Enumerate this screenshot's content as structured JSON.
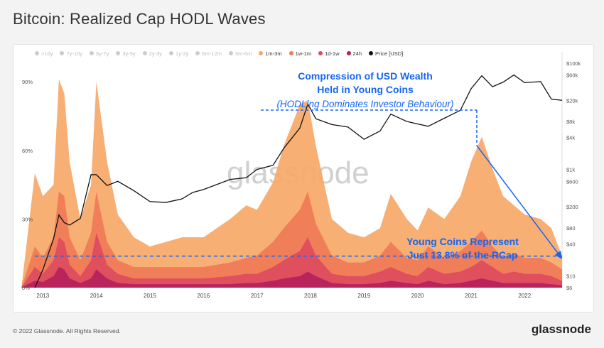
{
  "page": {
    "title": "Bitcoin: Realized Cap HODL Waves",
    "copyright": "© 2022 Glassnode. All Rights Reserved.",
    "brand": "glassnode",
    "watermark": "glassnode"
  },
  "legend": [
    {
      "label": ">10y",
      "color": "#5b4bb7",
      "active": false
    },
    {
      "label": "7y-10y",
      "color": "#3d7fd1",
      "active": false
    },
    {
      "label": "5y-7y",
      "color": "#3fa7c7",
      "active": false
    },
    {
      "label": "3y-5y",
      "color": "#5cc38c",
      "active": false
    },
    {
      "label": "2y-3y",
      "color": "#a8d86a",
      "active": false
    },
    {
      "label": "1y-2y",
      "color": "#e4e36b",
      "active": false
    },
    {
      "label": "6m-12m",
      "color": "#f7dd7a",
      "active": false
    },
    {
      "label": "3m-6m",
      "color": "#fbc17e",
      "active": false
    },
    {
      "label": "1m-3m",
      "color": "#f6a868",
      "active": true
    },
    {
      "label": "1w-1m",
      "color": "#ef7b57",
      "active": true
    },
    {
      "label": "1d-1w",
      "color": "#dd4b5e",
      "active": true
    },
    {
      "label": "24h",
      "color": "#b5215c",
      "active": true
    },
    {
      "label": "Price [USD]",
      "color": "#111111",
      "active": true
    }
  ],
  "annotations": {
    "top_line1": "Compression of USD Wealth",
    "top_line2": "Held in Young Coins",
    "top_line3": "(HODLing Dominates Investor Behaviour)",
    "bottom_line1": "Young Coins Represent",
    "bottom_line2": "Just 13.8% of the RCap",
    "color": "#1565f5"
  },
  "chart_data": {
    "type": "area",
    "x": [
      2012.6,
      2013.0,
      2013.2,
      2013.3,
      2013.4,
      2013.5,
      2013.7,
      2013.9,
      2014.0,
      2014.2,
      2014.4,
      2014.7,
      2015.0,
      2015.3,
      2015.6,
      2015.8,
      2016.0,
      2016.5,
      2016.8,
      2017.0,
      2017.3,
      2017.5,
      2017.8,
      2017.95,
      2018.1,
      2018.4,
      2018.7,
      2019.0,
      2019.3,
      2019.5,
      2019.8,
      2020.0,
      2020.2,
      2020.5,
      2020.8,
      2021.0,
      2021.2,
      2021.4,
      2021.6,
      2021.8,
      2022.0,
      2022.3,
      2022.5,
      2022.7
    ],
    "series": [
      {
        "name": "24h",
        "color": "#b5215c",
        "values": [
          3,
          2.5,
          5,
          9,
          8,
          4,
          2,
          4,
          8,
          4,
          2,
          1.5,
          1.5,
          1.5,
          1.5,
          1.5,
          1.5,
          1.5,
          2,
          2,
          3,
          4,
          5,
          7,
          5,
          2,
          1.5,
          1.5,
          2,
          3,
          2,
          1.5,
          3,
          1.5,
          2,
          3,
          4,
          3,
          2,
          2,
          2,
          2,
          1.5,
          1
        ]
      },
      {
        "name": "1d-1w",
        "color": "#dd4b5e",
        "values": [
          9,
          6,
          12,
          22,
          20,
          10,
          5,
          12,
          24,
          10,
          6,
          4,
          4,
          4,
          4,
          4,
          4,
          5,
          6,
          6,
          9,
          12,
          16,
          22,
          14,
          6,
          5,
          5,
          7,
          9,
          6,
          5,
          9,
          6,
          7,
          9,
          12,
          9,
          6,
          7,
          6,
          6,
          5,
          3
        ]
      },
      {
        "name": "1w-1m",
        "color": "#ef7b57",
        "values": [
          18,
          13,
          22,
          42,
          40,
          22,
          12,
          24,
          42,
          20,
          12,
          9,
          9,
          9,
          9,
          9,
          9,
          11,
          13,
          14,
          20,
          26,
          34,
          42,
          28,
          14,
          11,
          11,
          14,
          20,
          13,
          12,
          18,
          13,
          16,
          20,
          25,
          18,
          13,
          15,
          13,
          13,
          11,
          8
        ]
      },
      {
        "name": "1m-3m",
        "color": "#f6a868",
        "values": [
          50,
          40,
          45,
          91,
          85,
          55,
          30,
          45,
          90,
          55,
          32,
          22,
          18,
          20,
          22,
          22,
          22,
          30,
          36,
          34,
          46,
          62,
          80,
          82,
          62,
          30,
          24,
          22,
          26,
          41,
          30,
          25,
          35,
          30,
          40,
          55,
          66,
          52,
          40,
          36,
          32,
          30,
          26,
          13.8
        ]
      },
      {
        "name": "Price [USD]",
        "color": "#111111",
        "values": [
          6,
          13,
          50,
          140,
          100,
          90,
          120,
          800,
          800,
          500,
          600,
          400,
          250,
          240,
          280,
          370,
          420,
          650,
          700,
          1000,
          1200,
          2500,
          6000,
          17000,
          9000,
          7000,
          6300,
          3700,
          5300,
          11000,
          8000,
          7200,
          6500,
          9200,
          13000,
          33000,
          58000,
          36000,
          44000,
          60000,
          43000,
          45000,
          21000,
          20000
        ]
      }
    ],
    "title": "Bitcoin: Realized Cap HODL Waves",
    "xlim": [
      2012.85,
      2022.7
    ],
    "x_ticks": [
      "2013",
      "2014",
      "2015",
      "2016",
      "2017",
      "2018",
      "2019",
      "2020",
      "2021",
      "2022"
    ],
    "y_left_ticks": [
      "0%",
      "30%",
      "60%",
      "90%"
    ],
    "y_left_lim": [
      0,
      100
    ],
    "y_right_ticks": [
      "$6",
      "$10",
      "$40",
      "$80",
      "$200",
      "$600",
      "$1k",
      "$4k",
      "$8k",
      "$20k",
      "$60k",
      "$100k"
    ],
    "y_right_scale": "log",
    "y_right_lim": [
      6,
      120000
    ],
    "reference_line": 13.8,
    "grid": false,
    "legend_position": "top-left"
  }
}
